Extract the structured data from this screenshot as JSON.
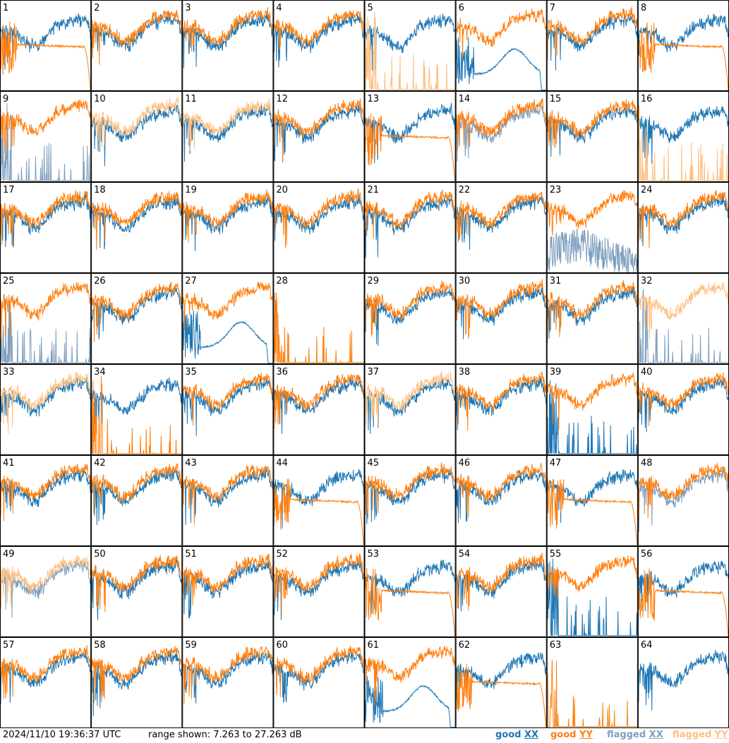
{
  "footer": {
    "timestamp": "2024/11/10 19:36:37 UTC",
    "range_label": "range shown: 7.263 to 27.263 dB"
  },
  "legend": [
    {
      "label_a": "good ",
      "label_b": "XX",
      "color": "#1f77b4"
    },
    {
      "label_a": "good ",
      "label_b": "YY",
      "color": "#ff7f0e"
    },
    {
      "label_a": "flagged ",
      "label_b": "XX",
      "color": "#7f9fbf"
    },
    {
      "label_a": "flagged ",
      "label_b": "YY",
      "color": "#ffbf80"
    }
  ],
  "chart_data": {
    "type": "line",
    "panel_count": 64,
    "grid": "8x8",
    "ylim_db": [
      7.263,
      27.263
    ],
    "series_names": [
      "good XX",
      "good YY",
      "flagged XX",
      "flagged YY"
    ],
    "panels": [
      {
        "id": 1,
        "xx": "good",
        "yy": "good",
        "xx_shape": "normal",
        "yy_shape": "decay"
      },
      {
        "id": 2,
        "xx": "good",
        "yy": "good",
        "xx_shape": "normal",
        "yy_shape": "normal"
      },
      {
        "id": 3,
        "xx": "good",
        "yy": "good",
        "xx_shape": "normal",
        "yy_shape": "normal"
      },
      {
        "id": 4,
        "xx": "good",
        "yy": "good",
        "xx_shape": "normal",
        "yy_shape": "normal"
      },
      {
        "id": 5,
        "xx": "good",
        "yy": "flagged",
        "xx_shape": "normal",
        "yy_shape": "spikes"
      },
      {
        "id": 6,
        "xx": "good",
        "yy": "good",
        "xx_shape": "bump",
        "yy_shape": "normal"
      },
      {
        "id": 7,
        "xx": "good",
        "yy": "good",
        "xx_shape": "normal",
        "yy_shape": "normal"
      },
      {
        "id": 8,
        "xx": "good",
        "yy": "good",
        "xx_shape": "normal",
        "yy_shape": "decay"
      },
      {
        "id": 9,
        "xx": "flagged",
        "yy": "good",
        "xx_shape": "spikes",
        "yy_shape": "normal"
      },
      {
        "id": 10,
        "xx": "good",
        "yy": "flagged",
        "xx_shape": "normal",
        "yy_shape": "normal"
      },
      {
        "id": 11,
        "xx": "good",
        "yy": "flagged",
        "xx_shape": "normal",
        "yy_shape": "normal"
      },
      {
        "id": 12,
        "xx": "good",
        "yy": "good",
        "xx_shape": "normal",
        "yy_shape": "normal"
      },
      {
        "id": 13,
        "xx": "good",
        "yy": "good",
        "xx_shape": "normal",
        "yy_shape": "decay"
      },
      {
        "id": 14,
        "xx": "flagged",
        "yy": "good",
        "xx_shape": "normal",
        "yy_shape": "normal"
      },
      {
        "id": 15,
        "xx": "good",
        "yy": "good",
        "xx_shape": "normal",
        "yy_shape": "normal"
      },
      {
        "id": 16,
        "xx": "good",
        "yy": "flagged",
        "xx_shape": "normal",
        "yy_shape": "spikes"
      },
      {
        "id": 17,
        "xx": "good",
        "yy": "good",
        "xx_shape": "normal",
        "yy_shape": "normal"
      },
      {
        "id": 18,
        "xx": "good",
        "yy": "good",
        "xx_shape": "normal",
        "yy_shape": "normal"
      },
      {
        "id": 19,
        "xx": "good",
        "yy": "good",
        "xx_shape": "normal",
        "yy_shape": "normal"
      },
      {
        "id": 20,
        "xx": "good",
        "yy": "good",
        "xx_shape": "normal",
        "yy_shape": "normal"
      },
      {
        "id": 21,
        "xx": "good",
        "yy": "good",
        "xx_shape": "normal",
        "yy_shape": "normal"
      },
      {
        "id": 22,
        "xx": "good",
        "yy": "good",
        "xx_shape": "normal",
        "yy_shape": "normal"
      },
      {
        "id": 23,
        "xx": "flagged",
        "yy": "good",
        "xx_shape": "noisy",
        "yy_shape": "normal"
      },
      {
        "id": 24,
        "xx": "good",
        "yy": "good",
        "xx_shape": "normal",
        "yy_shape": "normal"
      },
      {
        "id": 25,
        "xx": "flagged",
        "yy": "good",
        "xx_shape": "spikes",
        "yy_shape": "normal"
      },
      {
        "id": 26,
        "xx": "good",
        "yy": "good",
        "xx_shape": "normal",
        "yy_shape": "normal"
      },
      {
        "id": 27,
        "xx": "good",
        "yy": "good",
        "xx_shape": "bump",
        "yy_shape": "normal"
      },
      {
        "id": 28,
        "xx": "none",
        "yy": "good",
        "xx_shape": "none",
        "yy_shape": "spikes"
      },
      {
        "id": 29,
        "xx": "good",
        "yy": "good",
        "xx_shape": "normal",
        "yy_shape": "normal"
      },
      {
        "id": 30,
        "xx": "good",
        "yy": "good",
        "xx_shape": "normal",
        "yy_shape": "normal"
      },
      {
        "id": 31,
        "xx": "good",
        "yy": "good",
        "xx_shape": "normal",
        "yy_shape": "normal"
      },
      {
        "id": 32,
        "xx": "flagged",
        "yy": "flagged",
        "xx_shape": "spikes",
        "yy_shape": "normal"
      },
      {
        "id": 33,
        "xx": "good",
        "yy": "flagged",
        "xx_shape": "normal",
        "yy_shape": "normal"
      },
      {
        "id": 34,
        "xx": "good",
        "yy": "good",
        "xx_shape": "normal",
        "yy_shape": "spikes"
      },
      {
        "id": 35,
        "xx": "good",
        "yy": "good",
        "xx_shape": "normal",
        "yy_shape": "normal"
      },
      {
        "id": 36,
        "xx": "good",
        "yy": "good",
        "xx_shape": "normal",
        "yy_shape": "normal"
      },
      {
        "id": 37,
        "xx": "good",
        "yy": "flagged",
        "xx_shape": "normal",
        "yy_shape": "normal"
      },
      {
        "id": 38,
        "xx": "good",
        "yy": "good",
        "xx_shape": "normal",
        "yy_shape": "normal"
      },
      {
        "id": 39,
        "xx": "good",
        "yy": "good",
        "xx_shape": "spikes",
        "yy_shape": "normal"
      },
      {
        "id": 40,
        "xx": "good",
        "yy": "good",
        "xx_shape": "normal",
        "yy_shape": "normal"
      },
      {
        "id": 41,
        "xx": "good",
        "yy": "good",
        "xx_shape": "normal",
        "yy_shape": "normal"
      },
      {
        "id": 42,
        "xx": "good",
        "yy": "good",
        "xx_shape": "normal",
        "yy_shape": "normal"
      },
      {
        "id": 43,
        "xx": "good",
        "yy": "good",
        "xx_shape": "normal",
        "yy_shape": "normal"
      },
      {
        "id": 44,
        "xx": "good",
        "yy": "good",
        "xx_shape": "normal",
        "yy_shape": "decay"
      },
      {
        "id": 45,
        "xx": "good",
        "yy": "good",
        "xx_shape": "normal",
        "yy_shape": "normal"
      },
      {
        "id": 46,
        "xx": "good",
        "yy": "good",
        "xx_shape": "normal",
        "yy_shape": "normal"
      },
      {
        "id": 47,
        "xx": "good",
        "yy": "good",
        "xx_shape": "normal",
        "yy_shape": "decay"
      },
      {
        "id": 48,
        "xx": "flagged",
        "yy": "good",
        "xx_shape": "normal",
        "yy_shape": "normal"
      },
      {
        "id": 49,
        "xx": "flagged",
        "yy": "flagged",
        "xx_shape": "normal",
        "yy_shape": "normal"
      },
      {
        "id": 50,
        "xx": "good",
        "yy": "good",
        "xx_shape": "normal",
        "yy_shape": "normal"
      },
      {
        "id": 51,
        "xx": "good",
        "yy": "good",
        "xx_shape": "normal",
        "yy_shape": "normal"
      },
      {
        "id": 52,
        "xx": "good",
        "yy": "good",
        "xx_shape": "normal",
        "yy_shape": "normal"
      },
      {
        "id": 53,
        "xx": "good",
        "yy": "good",
        "xx_shape": "normal",
        "yy_shape": "decay"
      },
      {
        "id": 54,
        "xx": "good",
        "yy": "good",
        "xx_shape": "normal",
        "yy_shape": "normal"
      },
      {
        "id": 55,
        "xx": "good",
        "yy": "good",
        "xx_shape": "spikes",
        "yy_shape": "normal"
      },
      {
        "id": 56,
        "xx": "good",
        "yy": "good",
        "xx_shape": "normal",
        "yy_shape": "decay"
      },
      {
        "id": 57,
        "xx": "good",
        "yy": "good",
        "xx_shape": "normal",
        "yy_shape": "normal"
      },
      {
        "id": 58,
        "xx": "good",
        "yy": "good",
        "xx_shape": "normal",
        "yy_shape": "normal"
      },
      {
        "id": 59,
        "xx": "good",
        "yy": "good",
        "xx_shape": "normal",
        "yy_shape": "normal"
      },
      {
        "id": 60,
        "xx": "good",
        "yy": "good",
        "xx_shape": "normal",
        "yy_shape": "normal"
      },
      {
        "id": 61,
        "xx": "good",
        "yy": "good",
        "xx_shape": "bump",
        "yy_shape": "normal"
      },
      {
        "id": 62,
        "xx": "good",
        "yy": "good",
        "xx_shape": "normal",
        "yy_shape": "decay"
      },
      {
        "id": 63,
        "xx": "none",
        "yy": "good",
        "xx_shape": "none",
        "yy_shape": "spikes"
      },
      {
        "id": 64,
        "xx": "good",
        "yy": "none",
        "xx_shape": "normal",
        "yy_shape": "none"
      }
    ]
  }
}
